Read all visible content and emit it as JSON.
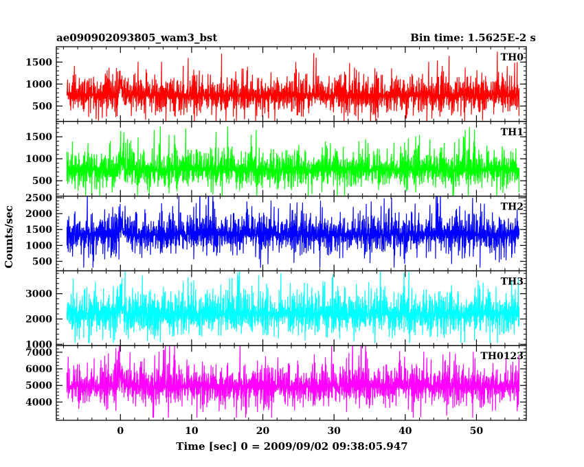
{
  "chart_data": {
    "type": "line",
    "title_left": "ae090902093805_wam3_bst",
    "title_right": "Bin time: 1.5625E-2 s",
    "xlabel": "Time [sec] 0 = 2009/09/02 09:38:05.947",
    "ylabel": "Counts/sec",
    "xlim": [
      -9,
      57
    ],
    "x_range": [
      -7.5,
      56
    ],
    "x_ticks": [
      0,
      10,
      20,
      30,
      40,
      50
    ],
    "burst_time": 0,
    "panels": [
      {
        "name": "TH0",
        "color": "#ff0000",
        "ylim": [
          150,
          1850
        ],
        "ticks": [
          500,
          1000,
          1500
        ],
        "mean": 750,
        "sigma": 220,
        "spike_prob": 0.05,
        "spike_amp": 700,
        "min_clip": 160
      },
      {
        "name": "TH1",
        "color": "#00ff00",
        "ylim": [
          150,
          1850
        ],
        "ticks": [
          500,
          1000,
          1500
        ],
        "mean": 750,
        "sigma": 220,
        "spike_prob": 0.05,
        "spike_amp": 700,
        "min_clip": 160
      },
      {
        "name": "TH2",
        "color": "#0000ff",
        "ylim": [
          200,
          2550
        ],
        "ticks": [
          500,
          1000,
          1500,
          2000,
          2500
        ],
        "mean": 1350,
        "sigma": 330,
        "spike_prob": 0.05,
        "spike_amp": 900,
        "min_clip": 300
      },
      {
        "name": "TH3",
        "color": "#00ffff",
        "ylim": [
          950,
          3900
        ],
        "ticks": [
          1000,
          2000,
          3000
        ],
        "mean": 2200,
        "sigma": 450,
        "spike_prob": 0.05,
        "spike_amp": 1300,
        "min_clip": 1050
      },
      {
        "name": "TH0123",
        "color": "#ff00ff",
        "ylim": [
          2900,
          7400
        ],
        "ticks": [
          4000,
          5000,
          6000,
          7000
        ],
        "mean": 4950,
        "sigma": 650,
        "spike_prob": 0.05,
        "spike_amp": 1900,
        "min_clip": 3050
      }
    ]
  }
}
